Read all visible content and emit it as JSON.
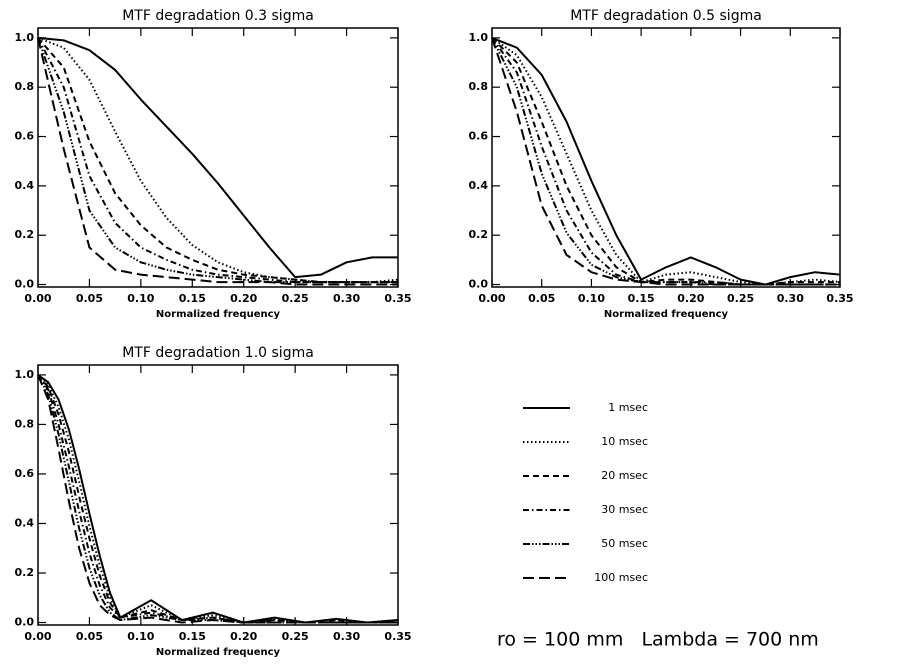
{
  "chart_data": [
    {
      "type": "line",
      "title": "MTF degradation 0.3 sigma",
      "xlabel": "Normalized frequency",
      "xlim": [
        0,
        0.35
      ],
      "ylim": [
        -0.01,
        1.04
      ],
      "xticks": [
        {
          "value": 0,
          "label": "0.00"
        },
        0.05,
        {
          "value": 0.1,
          "label": "0.10"
        },
        0.15,
        {
          "value": 0.2,
          "label": "0.20"
        },
        0.25,
        {
          "value": 0.3,
          "label": "0.30"
        },
        0.35
      ],
      "yticks": [
        {
          "value": 0,
          "label": "0.0"
        },
        0.2,
        0.4,
        0.6,
        0.8,
        {
          "value": 1,
          "label": "1.0"
        }
      ],
      "x": [
        0,
        0.025,
        0.05,
        0.075,
        0.1,
        0.125,
        0.15,
        0.175,
        0.2,
        0.225,
        0.25,
        0.275,
        0.3,
        0.325,
        0.35
      ],
      "series": [
        {
          "values": [
            1.0,
            0.99,
            0.95,
            0.87,
            0.75,
            0.64,
            0.53,
            0.41,
            0.28,
            0.15,
            0.03,
            0.04,
            0.09,
            0.11,
            0.11
          ]
        },
        {
          "values": [
            1.0,
            0.96,
            0.83,
            0.62,
            0.42,
            0.27,
            0.16,
            0.09,
            0.05,
            0.03,
            0.02,
            0.01,
            0.01,
            0.01,
            0.02
          ]
        },
        {
          "values": [
            1.0,
            0.88,
            0.58,
            0.37,
            0.24,
            0.15,
            0.1,
            0.06,
            0.04,
            0.03,
            0.02,
            0.01,
            0.01,
            0.01,
            0.01
          ]
        },
        {
          "values": [
            1.0,
            0.8,
            0.44,
            0.25,
            0.15,
            0.1,
            0.06,
            0.04,
            0.03,
            0.02,
            0.01,
            0.01,
            0.01,
            0.01,
            0.01
          ]
        },
        {
          "values": [
            1.0,
            0.7,
            0.3,
            0.15,
            0.09,
            0.06,
            0.04,
            0.03,
            0.02,
            0.01,
            0.01,
            0.01,
            0.01,
            0.01,
            0.01
          ]
        },
        {
          "values": [
            1.0,
            0.55,
            0.15,
            0.06,
            0.04,
            0.03,
            0.02,
            0.01,
            0.01,
            0.01,
            0.0,
            0.0,
            0.0,
            0.0,
            0.0
          ]
        }
      ]
    },
    {
      "type": "line",
      "title": "MTF degradation 0.5 sigma",
      "xlabel": "Normalized frequency",
      "xlim": [
        0,
        0.35
      ],
      "ylim": [
        -0.01,
        1.04
      ],
      "xticks": [
        {
          "value": 0,
          "label": "0.00"
        },
        0.05,
        {
          "value": 0.1,
          "label": "0.10"
        },
        0.15,
        {
          "value": 0.2,
          "label": "0.20"
        },
        0.25,
        {
          "value": 0.3,
          "label": "0.30"
        },
        0.35
      ],
      "yticks": [
        {
          "value": 0,
          "label": "0.0"
        },
        0.2,
        0.4,
        0.6,
        0.8,
        {
          "value": 1,
          "label": "1.0"
        }
      ],
      "x": [
        0,
        0.025,
        0.05,
        0.075,
        0.1,
        0.125,
        0.15,
        0.175,
        0.2,
        0.225,
        0.25,
        0.275,
        0.3,
        0.325,
        0.35
      ],
      "series": [
        {
          "values": [
            1.0,
            0.96,
            0.85,
            0.66,
            0.42,
            0.2,
            0.02,
            0.07,
            0.11,
            0.07,
            0.02,
            0.0,
            0.03,
            0.05,
            0.04
          ]
        },
        {
          "values": [
            1.0,
            0.93,
            0.76,
            0.53,
            0.3,
            0.12,
            0.01,
            0.04,
            0.05,
            0.03,
            0.01,
            0.0,
            0.01,
            0.02,
            0.01
          ]
        },
        {
          "values": [
            1.0,
            0.9,
            0.66,
            0.4,
            0.2,
            0.07,
            0.01,
            0.02,
            0.02,
            0.01,
            0.0,
            0.0,
            0.01,
            0.01,
            0.01
          ]
        },
        {
          "values": [
            1.0,
            0.86,
            0.56,
            0.3,
            0.13,
            0.04,
            0.01,
            0.01,
            0.01,
            0.01,
            0.0,
            0.0,
            0.0,
            0.0,
            0.0
          ]
        },
        {
          "values": [
            1.0,
            0.8,
            0.45,
            0.21,
            0.08,
            0.03,
            0.01,
            0.01,
            0.01,
            0.0,
            0.0,
            0.0,
            0.0,
            0.0,
            0.0
          ]
        },
        {
          "values": [
            1.0,
            0.7,
            0.32,
            0.12,
            0.05,
            0.02,
            0.01,
            0.0,
            0.0,
            0.0,
            0.0,
            0.0,
            0.0,
            0.0,
            0.0
          ]
        }
      ]
    },
    {
      "type": "line",
      "title": "MTF degradation 1.0 sigma",
      "xlabel": "Normalized frequency",
      "xlim": [
        0,
        0.35
      ],
      "ylim": [
        -0.01,
        1.04
      ],
      "xticks": [
        {
          "value": 0,
          "label": "0.00"
        },
        0.05,
        {
          "value": 0.1,
          "label": "0.10"
        },
        0.15,
        {
          "value": 0.2,
          "label": "0.20"
        },
        0.25,
        {
          "value": 0.3,
          "label": "0.30"
        },
        0.35
      ],
      "yticks": [
        {
          "value": 0,
          "label": "0.0"
        },
        0.2,
        0.4,
        0.6,
        0.8,
        {
          "value": 1,
          "label": "1.0"
        }
      ],
      "x": [
        0,
        0.01,
        0.02,
        0.03,
        0.04,
        0.05,
        0.06,
        0.07,
        0.08,
        0.11,
        0.14,
        0.17,
        0.2,
        0.23,
        0.26,
        0.29,
        0.32,
        0.35
      ],
      "series": [
        {
          "values": [
            1.0,
            0.97,
            0.9,
            0.78,
            0.62,
            0.44,
            0.27,
            0.12,
            0.02,
            0.09,
            0.01,
            0.04,
            0.0,
            0.02,
            0.0,
            0.015,
            0.0,
            0.01
          ]
        },
        {
          "values": [
            1.0,
            0.96,
            0.87,
            0.74,
            0.57,
            0.39,
            0.23,
            0.1,
            0.02,
            0.07,
            0.01,
            0.03,
            0.0,
            0.015,
            0.0,
            0.01,
            0.0,
            0.01
          ]
        },
        {
          "values": [
            1.0,
            0.95,
            0.84,
            0.69,
            0.51,
            0.34,
            0.19,
            0.08,
            0.02,
            0.05,
            0.01,
            0.02,
            0.0,
            0.01,
            0.0,
            0.01,
            0.0,
            0.0
          ]
        },
        {
          "values": [
            1.0,
            0.94,
            0.8,
            0.63,
            0.45,
            0.28,
            0.15,
            0.06,
            0.02,
            0.04,
            0.01,
            0.02,
            0.0,
            0.01,
            0.0,
            0.0,
            0.0,
            0.0
          ]
        },
        {
          "values": [
            1.0,
            0.92,
            0.76,
            0.57,
            0.38,
            0.22,
            0.11,
            0.04,
            0.01,
            0.03,
            0.01,
            0.01,
            0.0,
            0.0,
            0.0,
            0.0,
            0.0,
            0.0
          ]
        },
        {
          "values": [
            1.0,
            0.9,
            0.7,
            0.49,
            0.3,
            0.16,
            0.07,
            0.03,
            0.01,
            0.02,
            0.0,
            0.01,
            0.0,
            0.0,
            0.0,
            0.0,
            0.0,
            0.0
          ]
        }
      ]
    }
  ],
  "legend": {
    "entries": [
      {
        "name": "1 msec",
        "color": "#000000",
        "dash": "none"
      },
      {
        "name": "10 msec",
        "color": "#000000",
        "dash": "1.5 2.5"
      },
      {
        "name": "20 msec",
        "color": "#000000",
        "dash": "6 4"
      },
      {
        "name": "30 msec",
        "color": "#000000",
        "dash": "6 3 1.5 3"
      },
      {
        "name": "50 msec",
        "color": "#000000",
        "dash": "7 2 1.5 2 1.5 2 1.5 2"
      },
      {
        "name": "100 msec",
        "color": "#000000",
        "dash": "11 5"
      }
    ]
  },
  "annotation": "ro = 100 mm   Lambda = 700 nm"
}
